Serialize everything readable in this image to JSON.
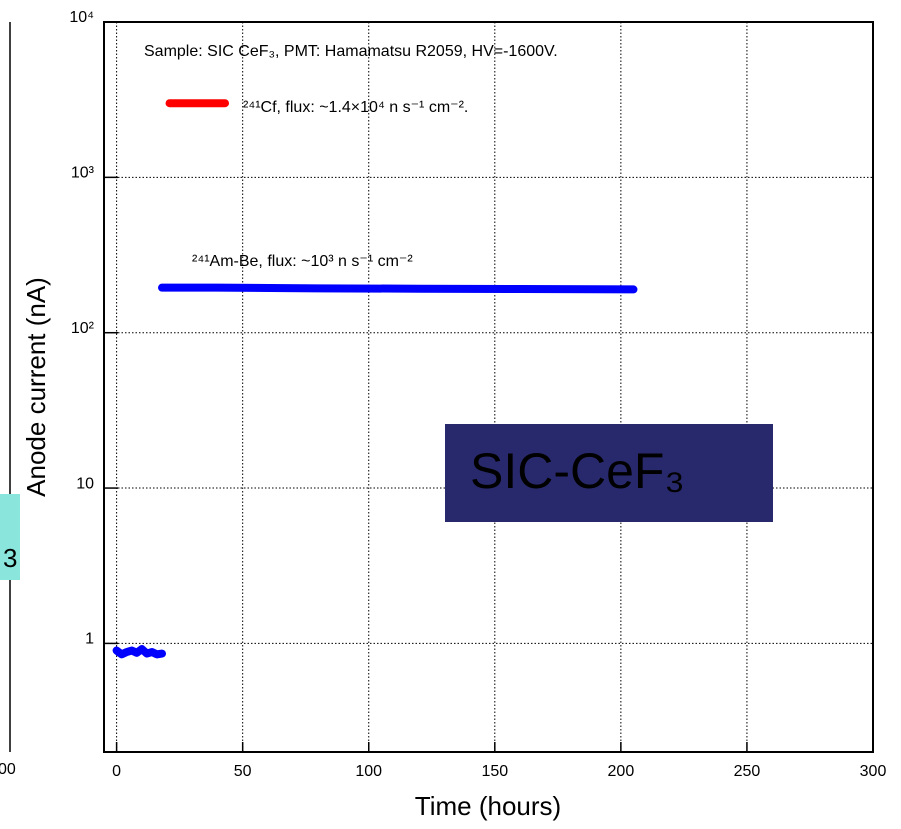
{
  "chart_data": {
    "type": "line",
    "xlabel": "Time (hours)",
    "ylabel": "Anode current (nA)",
    "annotation": "Sample: SIC CeF₃, PMT: Hamamatsu R2059, HV=-1600V.",
    "label_box": "SIC-CeF₃",
    "log_y": true,
    "grid": true,
    "xlim": [
      -5,
      300
    ],
    "xticks": [
      0,
      50,
      100,
      150,
      200,
      250,
      300
    ],
    "ylim": [
      0.2,
      10000
    ],
    "yticks": [
      {
        "value": 1,
        "label": "1"
      },
      {
        "value": 10,
        "label": "10"
      },
      {
        "value": 100,
        "label": "10²"
      },
      {
        "value": 1000,
        "label": "10³"
      },
      {
        "value": 10000,
        "label": "10⁴"
      }
    ],
    "series": [
      {
        "name": "²⁴¹Cf, flux: ~1.4×10⁴ n s⁻¹ cm⁻².",
        "color": "#ff0000",
        "x": [
          21,
          43
        ],
        "values": [
          3000,
          3000
        ]
      },
      {
        "name": "²⁴¹Am-Be, flux: ~10³ n s⁻¹ cm⁻²",
        "color": "#0000ff",
        "x": [
          0,
          2,
          4,
          6,
          8,
          10,
          12,
          14,
          16,
          18,
          null,
          18,
          40,
          80,
          120,
          160,
          205
        ],
        "values": [
          0.9,
          0.85,
          0.88,
          0.9,
          0.87,
          0.92,
          0.86,
          0.88,
          0.85,
          0.86,
          null,
          195,
          195,
          193,
          192,
          191,
          190
        ]
      }
    ]
  },
  "cropped_neighbor": {
    "x_tick_label": "00",
    "label_fragment": "3"
  }
}
